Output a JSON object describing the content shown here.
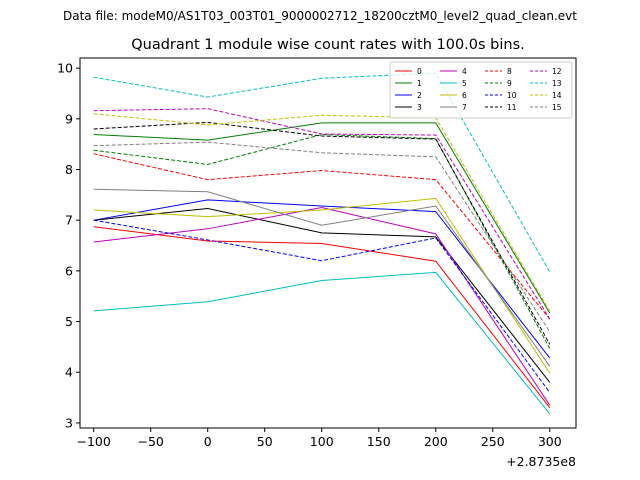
{
  "chart_data": {
    "type": "line",
    "suptitle": "Data file: modeM0/AS1T03_003T01_9000002712_18200cztM0_level2_quad_clean.evt",
    "title": "Quadrant 1 module wise count rates with 100.0s bins.",
    "x_offset_label": "+2.8735e8",
    "x": [
      -100,
      0,
      100,
      200,
      300
    ],
    "xlim": [
      -112,
      323
    ],
    "ylim": [
      2.9,
      10.2
    ],
    "xticks": [
      -100,
      -50,
      0,
      50,
      100,
      150,
      200,
      250,
      300
    ],
    "xtick_labels": [
      "−100",
      "−50",
      "0",
      "50",
      "100",
      "150",
      "200",
      "250",
      "300"
    ],
    "yticks": [
      3,
      4,
      5,
      6,
      7,
      8,
      9,
      10
    ],
    "ytick_labels": [
      "3",
      "4",
      "5",
      "6",
      "7",
      "8",
      "9",
      "10"
    ],
    "legend_position": "upper-right",
    "series": [
      {
        "name": "0",
        "color": "#ff0000",
        "dashed": false,
        "values": [
          6.87,
          6.59,
          6.54,
          6.19,
          3.3
        ]
      },
      {
        "name": "1",
        "color": "#008000",
        "dashed": false,
        "values": [
          8.69,
          8.58,
          8.92,
          8.92,
          5.17
        ]
      },
      {
        "name": "2",
        "color": "#0000ff",
        "dashed": false,
        "values": [
          7.0,
          7.4,
          7.28,
          7.17,
          4.28
        ]
      },
      {
        "name": "3",
        "color": "#000000",
        "dashed": false,
        "values": [
          7.0,
          7.23,
          6.75,
          6.67,
          3.8
        ]
      },
      {
        "name": "4",
        "color": "#bf00bf",
        "dashed": false,
        "values": [
          6.57,
          6.83,
          7.25,
          6.73,
          3.35
        ]
      },
      {
        "name": "5",
        "color": "#00bfbf",
        "dashed": false,
        "values": [
          5.21,
          5.39,
          5.81,
          5.97,
          3.18
        ]
      },
      {
        "name": "6",
        "color": "#bfbf00",
        "dashed": false,
        "values": [
          7.2,
          7.07,
          7.2,
          7.43,
          3.98
        ]
      },
      {
        "name": "7",
        "color": "#808080",
        "dashed": false,
        "values": [
          7.61,
          7.56,
          6.9,
          7.28,
          4.12
        ]
      },
      {
        "name": "8",
        "color": "#ff0000",
        "dashed": true,
        "values": [
          8.31,
          7.8,
          7.98,
          7.8,
          5.05
        ]
      },
      {
        "name": "9",
        "color": "#008000",
        "dashed": true,
        "values": [
          8.38,
          8.1,
          8.69,
          8.61,
          4.47
        ]
      },
      {
        "name": "10",
        "color": "#0000ff",
        "dashed": true,
        "values": [
          7.0,
          6.61,
          6.2,
          6.65,
          3.6
        ]
      },
      {
        "name": "11",
        "color": "#000000",
        "dashed": true,
        "values": [
          8.8,
          8.93,
          8.66,
          8.6,
          4.55
        ]
      },
      {
        "name": "12",
        "color": "#bf00bf",
        "dashed": true,
        "values": [
          9.16,
          9.2,
          8.7,
          8.68,
          5.05
        ]
      },
      {
        "name": "13",
        "color": "#00bfbf",
        "dashed": true,
        "values": [
          9.82,
          9.43,
          9.8,
          9.9,
          5.98
        ]
      },
      {
        "name": "14",
        "color": "#bfbf00",
        "dashed": true,
        "values": [
          9.1,
          8.88,
          9.07,
          9.02,
          5.2
        ]
      },
      {
        "name": "15",
        "color": "#808080",
        "dashed": true,
        "values": [
          8.47,
          8.54,
          8.33,
          8.25,
          4.8
        ]
      }
    ]
  }
}
